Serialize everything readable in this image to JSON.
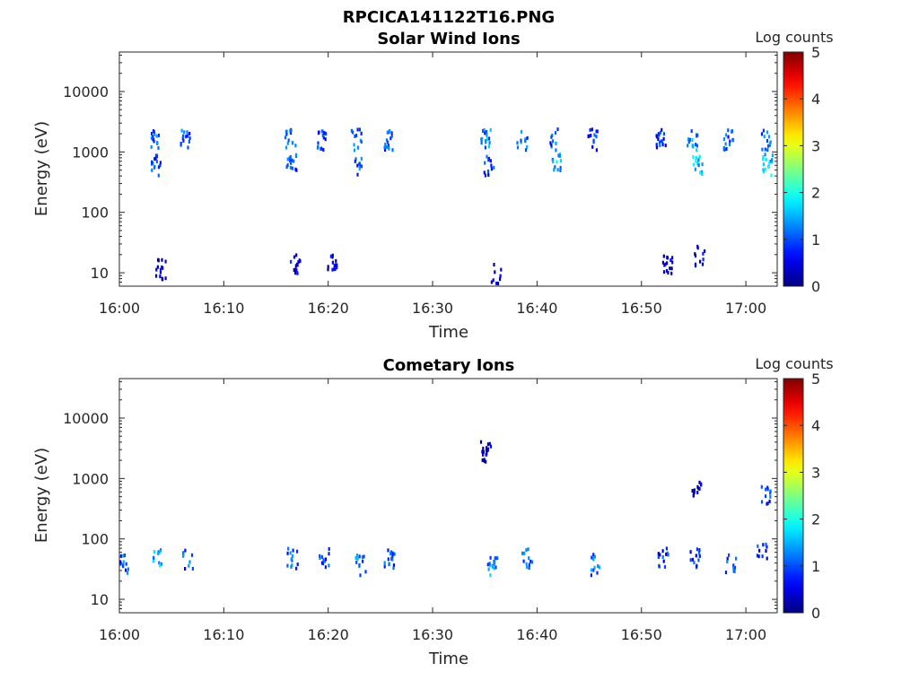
{
  "figure_title": "RPCICA141122T16.PNG",
  "chart_data": [
    {
      "type": "heatmap",
      "title": "Solar Wind Ions",
      "xlabel": "Time",
      "ylabel": "Energy (eV)",
      "x_ticks": [
        "16:00",
        "16:10",
        "16:20",
        "16:30",
        "16:40",
        "16:50",
        "17:00"
      ],
      "xlim_minutes": [
        0,
        63
      ],
      "y_scale": "log",
      "y_ticks": [
        10,
        100,
        1000,
        10000
      ],
      "ylim": [
        6,
        45000
      ],
      "colorbar": {
        "label": "Log counts",
        "min": 0,
        "max": 5,
        "ticks": [
          0,
          1,
          2,
          3,
          4,
          5
        ],
        "colormap": "jet"
      },
      "clusters": [
        {
          "t": 3.3,
          "e": 1700,
          "v": 1.6
        },
        {
          "t": 3.5,
          "e": 650,
          "v": 1.4
        },
        {
          "t": 6.3,
          "e": 1700,
          "v": 1.5
        },
        {
          "t": 16.3,
          "e": 1700,
          "v": 1.5
        },
        {
          "t": 16.4,
          "e": 650,
          "v": 1.4
        },
        {
          "t": 19.2,
          "e": 1700,
          "v": 1.3
        },
        {
          "t": 22.8,
          "e": 650,
          "v": 1.6
        },
        {
          "t": 22.6,
          "e": 1700,
          "v": 1.5
        },
        {
          "t": 25.8,
          "e": 1700,
          "v": 1.4
        },
        {
          "t": 35.0,
          "e": 1700,
          "v": 1.7
        },
        {
          "t": 35.3,
          "e": 650,
          "v": 1.4
        },
        {
          "t": 38.5,
          "e": 1700,
          "v": 1.5
        },
        {
          "t": 41.8,
          "e": 700,
          "v": 1.9
        },
        {
          "t": 41.5,
          "e": 1700,
          "v": 1.5
        },
        {
          "t": 45.2,
          "e": 1700,
          "v": 1.4
        },
        {
          "t": 51.8,
          "e": 1700,
          "v": 1.3
        },
        {
          "t": 54.8,
          "e": 1700,
          "v": 1.7
        },
        {
          "t": 55.3,
          "e": 650,
          "v": 1.9
        },
        {
          "t": 58.3,
          "e": 1700,
          "v": 1.4
        },
        {
          "t": 61.8,
          "e": 1700,
          "v": 1.6
        },
        {
          "t": 62.0,
          "e": 650,
          "v": 2.0
        },
        {
          "t": 3.9,
          "e": 12,
          "v": 0.8
        },
        {
          "t": 16.8,
          "e": 15,
          "v": 0.9
        },
        {
          "t": 20.3,
          "e": 15,
          "v": 0.8
        },
        {
          "t": 36.0,
          "e": 10,
          "v": 0.8
        },
        {
          "t": 52.4,
          "e": 15,
          "v": 0.8
        },
        {
          "t": 55.5,
          "e": 20,
          "v": 0.8
        }
      ]
    },
    {
      "type": "heatmap",
      "title": "Cometary Ions",
      "xlabel": "Time",
      "ylabel": "Energy (eV)",
      "x_ticks": [
        "16:00",
        "16:10",
        "16:20",
        "16:30",
        "16:40",
        "16:50",
        "17:00"
      ],
      "xlim_minutes": [
        0,
        63
      ],
      "y_scale": "log",
      "y_ticks": [
        10,
        100,
        1000,
        10000
      ],
      "ylim": [
        6,
        45000
      ],
      "colorbar": {
        "label": "Log counts",
        "min": 0,
        "max": 5,
        "ticks": [
          0,
          1,
          2,
          3,
          4,
          5
        ],
        "colormap": "jet"
      },
      "clusters": [
        {
          "t": 0.5,
          "e": 40,
          "v": 1.5
        },
        {
          "t": 3.5,
          "e": 50,
          "v": 1.9
        },
        {
          "t": 6.5,
          "e": 50,
          "v": 1.4
        },
        {
          "t": 16.5,
          "e": 50,
          "v": 1.5
        },
        {
          "t": 19.5,
          "e": 50,
          "v": 1.4
        },
        {
          "t": 23.0,
          "e": 40,
          "v": 1.6
        },
        {
          "t": 25.8,
          "e": 50,
          "v": 1.4
        },
        {
          "t": 35.6,
          "e": 40,
          "v": 1.7
        },
        {
          "t": 39.0,
          "e": 50,
          "v": 1.6
        },
        {
          "t": 45.5,
          "e": 40,
          "v": 1.6
        },
        {
          "t": 52.0,
          "e": 50,
          "v": 1.2
        },
        {
          "t": 55.0,
          "e": 50,
          "v": 1.2
        },
        {
          "t": 58.5,
          "e": 40,
          "v": 1.3
        },
        {
          "t": 61.5,
          "e": 60,
          "v": 1.2
        },
        {
          "t": 61.8,
          "e": 600,
          "v": 1.3
        },
        {
          "t": 35.0,
          "e": 3000,
          "v": 0.6
        },
        {
          "t": 55.2,
          "e": 650,
          "v": 0.8
        }
      ]
    }
  ]
}
